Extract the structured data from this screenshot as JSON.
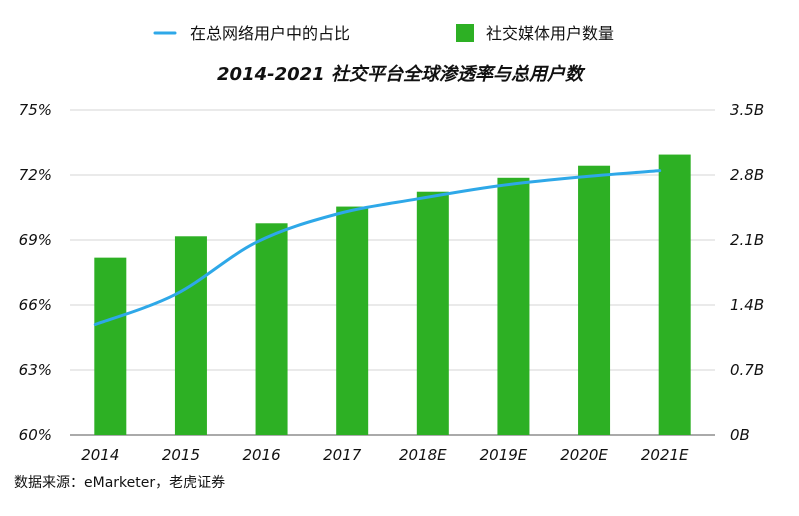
{
  "chart_data": {
    "type": "bar",
    "title": "2014-2021 社交平台全球渗透率与总用户数",
    "categories": [
      "2014",
      "2015",
      "2016",
      "2017",
      "2018E",
      "2019E",
      "2020E",
      "2021E"
    ],
    "series": [
      {
        "name": "社交媒体用户数量",
        "type": "bar",
        "axis": "right",
        "color": "#2db024",
        "values": [
          1.91,
          2.14,
          2.28,
          2.46,
          2.62,
          2.77,
          2.9,
          3.02
        ]
      },
      {
        "name": "在总网络用户中的占比",
        "type": "line",
        "axis": "left",
        "color": "#2ea8e8",
        "values": [
          65.1,
          66.5,
          68.9,
          70.2,
          70.9,
          71.5,
          71.9,
          72.2
        ]
      }
    ],
    "y_left": {
      "ylim": [
        60,
        75
      ],
      "ticks": [
        60,
        63,
        66,
        69,
        72,
        75
      ],
      "tick_labels": [
        "60%",
        "63%",
        "66%",
        "69%",
        "72%",
        "75%"
      ]
    },
    "y_right": {
      "ylim": [
        0,
        3.5
      ],
      "ticks": [
        0,
        0.7,
        1.4,
        2.1,
        2.8,
        3.5
      ],
      "tick_labels": [
        "0B",
        "0.7B",
        "1.4B",
        "2.1B",
        "2.8B",
        "3.5B"
      ]
    },
    "grid": true,
    "legend_placement": "top",
    "source": "数据来源：eMarketer，老虎证券"
  }
}
